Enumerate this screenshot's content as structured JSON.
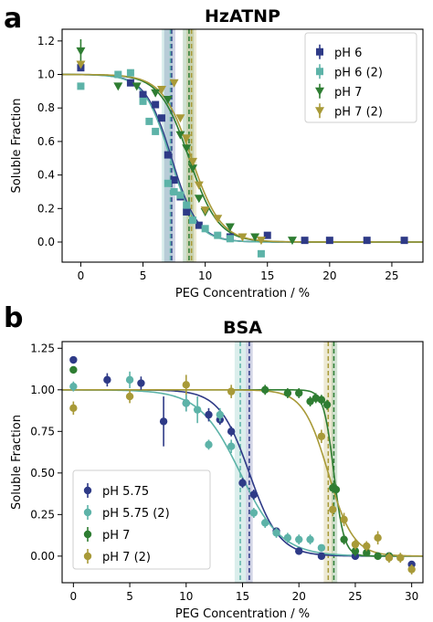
{
  "chart_data": [
    {
      "type": "scatter",
      "panel_letter": "a",
      "title": "HzATNP",
      "xlabel": "PEG Concentration / %",
      "ylabel": "Soluble Fraction",
      "xlim": [
        -1.5,
        27.5
      ],
      "ylim": [
        -0.12,
        1.27
      ],
      "xticks": [
        0,
        5,
        10,
        15,
        20,
        25
      ],
      "yticks": [
        0.0,
        0.2,
        0.4,
        0.6,
        0.8,
        1.0,
        1.2
      ],
      "ytick_labels": [
        "0.0",
        "0.2",
        "0.4",
        "0.6",
        "0.8",
        "1.0",
        "1.2"
      ],
      "grid": false,
      "legend_position": "top-right",
      "series": [
        {
          "name": "pH 6",
          "color": "#2e3a87",
          "marker": "square",
          "x": [
            0,
            4,
            5,
            6,
            6.5,
            7,
            7.5,
            8,
            8.5,
            9.5,
            12,
            15,
            18,
            20,
            23,
            26
          ],
          "y": [
            1.04,
            0.95,
            0.88,
            0.82,
            0.74,
            0.52,
            0.37,
            0.27,
            0.18,
            0.1,
            0.03,
            0.04,
            0.01,
            0.01,
            0.01,
            0.01
          ],
          "yerr": [
            0.02,
            0.02,
            0.02,
            0.02,
            0.02,
            0.02,
            0.02,
            0.02,
            0.02,
            0.02,
            0.01,
            0.01,
            0.01,
            0.01,
            0.01,
            0.01
          ],
          "fit_midpoint": 7.3,
          "fit_steepness": 0.95,
          "band": [
            6.7,
            7.6
          ]
        },
        {
          "name": "pH 6 (2)",
          "color": "#5db3a8",
          "marker": "square",
          "x": [
            0,
            3,
            4,
            5,
            5.5,
            6,
            7,
            7.5,
            8,
            8.5,
            9,
            10,
            11,
            12,
            14.5
          ],
          "y": [
            0.93,
            1.0,
            1.01,
            0.84,
            0.72,
            0.66,
            0.35,
            0.3,
            0.28,
            0.22,
            0.13,
            0.08,
            0.04,
            0.02,
            -0.07
          ],
          "yerr": [
            0.02,
            0.02,
            0.02,
            0.02,
            0.02,
            0.02,
            0.02,
            0.02,
            0.02,
            0.02,
            0.02,
            0.02,
            0.01,
            0.01,
            0.01
          ],
          "fit_midpoint": 7.2,
          "fit_steepness": 0.95,
          "band": [
            6.5,
            7.4
          ]
        },
        {
          "name": "pH 7",
          "color": "#2e7d32",
          "marker": "triangle-down",
          "x": [
            0,
            3,
            4.5,
            6,
            7,
            8,
            8.5,
            9,
            9.5,
            10,
            12,
            14,
            17
          ],
          "y": [
            1.14,
            0.93,
            0.93,
            0.89,
            0.85,
            0.64,
            0.56,
            0.44,
            0.26,
            0.18,
            0.09,
            0.03,
            0.01
          ],
          "yerr": [
            0.07,
            0.02,
            0.02,
            0.02,
            0.02,
            0.02,
            0.02,
            0.02,
            0.02,
            0.02,
            0.02,
            0.01,
            0.01
          ],
          "fit_midpoint": 8.7,
          "fit_steepness": 0.85,
          "band": [
            8.2,
            9.1
          ]
        },
        {
          "name": "pH 7 (2)",
          "color": "#a89a38",
          "marker": "triangle-down",
          "x": [
            0,
            6.5,
            7.5,
            8,
            8.5,
            9,
            9.5,
            10,
            11,
            13,
            14.5
          ],
          "y": [
            1.06,
            0.91,
            0.95,
            0.74,
            0.62,
            0.48,
            0.34,
            0.19,
            0.14,
            0.03,
            0.01
          ],
          "yerr": [
            0.02,
            0.02,
            0.02,
            0.02,
            0.02,
            0.02,
            0.02,
            0.02,
            0.02,
            0.01,
            0.01
          ],
          "fit_midpoint": 8.9,
          "fit_steepness": 0.85,
          "band": [
            8.5,
            9.3
          ]
        }
      ]
    },
    {
      "type": "scatter",
      "panel_letter": "b",
      "title": "BSA",
      "xlabel": "PEG Concentration / %",
      "ylabel": "Soluble Fraction",
      "xlim": [
        -1,
        31
      ],
      "ylim": [
        -0.16,
        1.29
      ],
      "xticks": [
        0,
        5,
        10,
        15,
        20,
        25,
        30
      ],
      "yticks": [
        0.0,
        0.25,
        0.5,
        0.75,
        1.0,
        1.25
      ],
      "ytick_labels": [
        "0.00",
        "0.25",
        "0.50",
        "0.75",
        "1.00",
        "1.25"
      ],
      "grid": false,
      "legend_position": "bottom-left",
      "series": [
        {
          "name": "pH 5.75",
          "color": "#2e3a87",
          "marker": "circle",
          "x": [
            0,
            3,
            6,
            8,
            10,
            12,
            13,
            14,
            15,
            16,
            18,
            20,
            22,
            25,
            28,
            30
          ],
          "y": [
            1.18,
            1.06,
            1.04,
            0.81,
            0.92,
            0.85,
            0.82,
            0.75,
            0.44,
            0.37,
            0.15,
            0.03,
            0.0,
            0.0,
            0.0,
            -0.05
          ],
          "yerr": [
            0.02,
            0.04,
            0.04,
            0.15,
            0.05,
            0.04,
            0.03,
            0.03,
            0.03,
            0.03,
            0.02,
            0.02,
            0.02,
            0.02,
            0.02,
            0.02
          ],
          "fit_midpoint": 15.6,
          "fit_steepness": 0.75,
          "band": [
            15.3,
            15.9
          ]
        },
        {
          "name": "pH 5.75 (2)",
          "color": "#5db3a8",
          "marker": "circle",
          "x": [
            0,
            5,
            10,
            11,
            12,
            13,
            14,
            16,
            17,
            18,
            19,
            20,
            21,
            22
          ],
          "y": [
            1.02,
            1.06,
            0.92,
            0.88,
            0.67,
            0.85,
            0.66,
            0.26,
            0.2,
            0.14,
            0.11,
            0.1,
            0.1,
            0.05
          ],
          "yerr": [
            0.03,
            0.05,
            0.05,
            0.08,
            0.03,
            0.04,
            0.04,
            0.03,
            0.03,
            0.03,
            0.03,
            0.03,
            0.03,
            0.02
          ],
          "fit_midpoint": 14.8,
          "fit_steepness": 0.55,
          "band": [
            14.3,
            15.3
          ]
        },
        {
          "name": "pH 7",
          "color": "#2e7d32",
          "marker": "circle",
          "x": [
            0,
            17,
            19,
            20,
            21,
            21.5,
            22,
            22.5,
            23,
            23.3,
            24,
            25,
            26,
            27,
            28
          ],
          "y": [
            1.12,
            1.0,
            0.98,
            0.98,
            0.93,
            0.95,
            0.94,
            0.91,
            0.41,
            0.4,
            0.1,
            0.03,
            0.02,
            0.0,
            0.0
          ],
          "yerr": [
            0.02,
            0.03,
            0.03,
            0.03,
            0.03,
            0.03,
            0.03,
            0.03,
            0.03,
            0.03,
            0.03,
            0.03,
            0.02,
            0.02,
            0.02
          ],
          "fit_midpoint": 23.1,
          "fit_steepness": 2.2,
          "band": [
            22.9,
            23.4
          ]
        },
        {
          "name": "pH 7 (2)",
          "color": "#a89a38",
          "marker": "circle",
          "x": [
            0,
            5,
            10,
            14,
            22,
            23,
            24,
            25,
            26,
            27,
            28,
            29,
            30
          ],
          "y": [
            0.89,
            0.96,
            1.03,
            0.99,
            0.72,
            0.28,
            0.22,
            0.07,
            0.06,
            0.11,
            -0.01,
            -0.01,
            -0.08
          ],
          "yerr": [
            0.04,
            0.04,
            0.06,
            0.04,
            0.04,
            0.04,
            0.04,
            0.03,
            0.03,
            0.04,
            0.03,
            0.03,
            0.03
          ],
          "fit_midpoint": 22.6,
          "fit_steepness": 0.9,
          "band": [
            22.2,
            23.0
          ]
        }
      ]
    }
  ]
}
